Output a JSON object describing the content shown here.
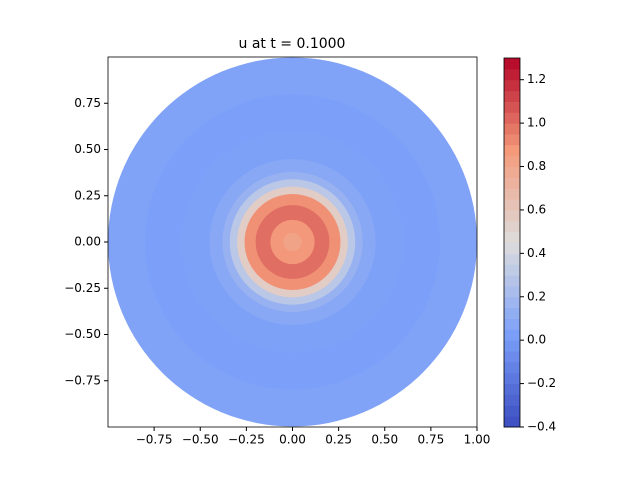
{
  "chart_data": {
    "type": "contour",
    "title": "u at t = 0.1000",
    "xlim": [
      -1,
      1
    ],
    "ylim": [
      -1,
      1
    ],
    "xticks": [
      {
        "value": -0.75,
        "label": "−0.75"
      },
      {
        "value": -0.5,
        "label": "−0.50"
      },
      {
        "value": -0.25,
        "label": "−0.25"
      },
      {
        "value": 0,
        "label": "0.00"
      },
      {
        "value": 0.25,
        "label": "0.25"
      },
      {
        "value": 0.5,
        "label": "0.50"
      },
      {
        "value": 0.75,
        "label": "0.75"
      },
      {
        "value": 1,
        "label": "1.00"
      }
    ],
    "yticks": [
      {
        "value": -0.75,
        "label": "−0.75"
      },
      {
        "value": -0.5,
        "label": "−0.50"
      },
      {
        "value": -0.25,
        "label": "−0.25"
      },
      {
        "value": 0,
        "label": "0.00"
      },
      {
        "value": 0.25,
        "label": "0.25"
      },
      {
        "value": 0.5,
        "label": "0.50"
      },
      {
        "value": 0.75,
        "label": "0.75"
      }
    ],
    "field": {
      "r": [
        1.0,
        0.8,
        0.6,
        0.45,
        0.38,
        0.34,
        0.3,
        0.26,
        0.2,
        0.12,
        0.05
      ],
      "u": [
        0.05,
        0.03,
        0.04,
        0.08,
        0.15,
        0.3,
        0.55,
        0.9,
        1.0,
        0.88,
        0.82
      ]
    },
    "clim": [
      -0.4,
      1.3
    ],
    "cticks": [
      {
        "value": -0.4,
        "label": "−0.4"
      },
      {
        "value": -0.2,
        "label": "−0.2"
      },
      {
        "value": 0,
        "label": "0.0"
      },
      0.2,
      0.4,
      0.6,
      0.8,
      {
        "value": 1,
        "label": "1.0"
      },
      1.2
    ],
    "colormap": [
      "#3b4cc0",
      "#7b9ff9",
      "#dddddd",
      "#f49a7b",
      "#b40426"
    ]
  }
}
